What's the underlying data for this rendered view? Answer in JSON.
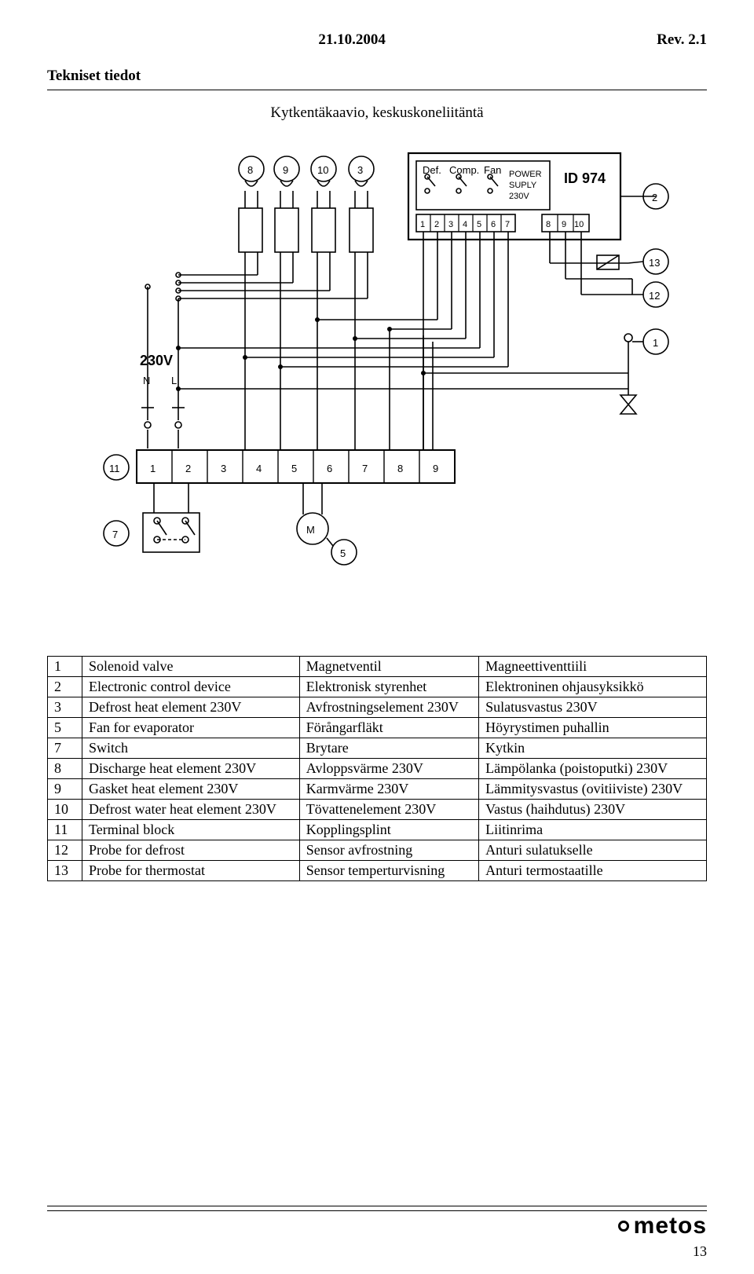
{
  "header": {
    "date": "21.10.2004",
    "rev": "Rev. 2.1",
    "title": "Tekniset tiedot"
  },
  "subtitle": "Kytkentäkaavio, keskuskoneliitäntä",
  "diagram": {
    "controller_label": "ID 974",
    "controller_top": [
      "Def.",
      "Comp.",
      "Fan"
    ],
    "controller_power": [
      "POWER",
      "SUPLY",
      "230V"
    ],
    "controller_terms_left": [
      "1",
      "2",
      "3",
      "4",
      "5",
      "6",
      "7"
    ],
    "controller_terms_right": [
      "8",
      "9",
      "10"
    ],
    "voltage_label": "230V",
    "nl": [
      "N",
      "L"
    ],
    "term_block": [
      "1",
      "2",
      "3",
      "4",
      "5",
      "6",
      "7",
      "8",
      "9"
    ],
    "top_circles": [
      "8",
      "9",
      "10",
      "3"
    ],
    "right_circles": [
      "2",
      "13",
      "12",
      "1"
    ],
    "left_circles": [
      "11",
      "7"
    ],
    "motor_label": "M",
    "motor_num": "5"
  },
  "legend": {
    "rows": [
      {
        "n": "1",
        "a": "Solenoid valve",
        "b": "Magnetventil",
        "c": "Magneettiventtiili"
      },
      {
        "n": "2",
        "a": "Electronic control device",
        "b": "Elektronisk styrenhet",
        "c": "Elektroninen ohjausyksikkö"
      },
      {
        "n": "3",
        "a": "Defrost heat element 230V",
        "b": "Avfrostningselement 230V",
        "c": "Sulatusvastus 230V"
      },
      {
        "n": "5",
        "a": "Fan for evaporator",
        "b": "Förångarfläkt",
        "c": "Höyrystimen puhallin"
      },
      {
        "n": "7",
        "a": "Switch",
        "b": "Brytare",
        "c": "Kytkin"
      },
      {
        "n": "8",
        "a": "Discharge heat element 230V",
        "b": "Avloppsvärme 230V",
        "c": "Lämpölanka (poistoputki) 230V"
      },
      {
        "n": "9",
        "a": "Gasket heat element 230V",
        "b": "Karmvärme 230V",
        "c": "Lämmitysvastus (ovitiiviste) 230V"
      },
      {
        "n": "10",
        "a": "Defrost water heat element 230V",
        "b": "Tövattenelement 230V",
        "c": "Vastus (haihdutus) 230V"
      },
      {
        "n": "11",
        "a": "Terminal block",
        "b": "Kopplingsplint",
        "c": "Liitinrima"
      },
      {
        "n": "12",
        "a": "Probe for defrost",
        "b": "Sensor avfrostning",
        "c": "Anturi sulatukselle"
      },
      {
        "n": "13",
        "a": "Probe for thermostat",
        "b": "Sensor temperturvisning",
        "c": "Anturi termostaatille"
      }
    ]
  },
  "footer": {
    "logo": "metos",
    "page": "13"
  }
}
